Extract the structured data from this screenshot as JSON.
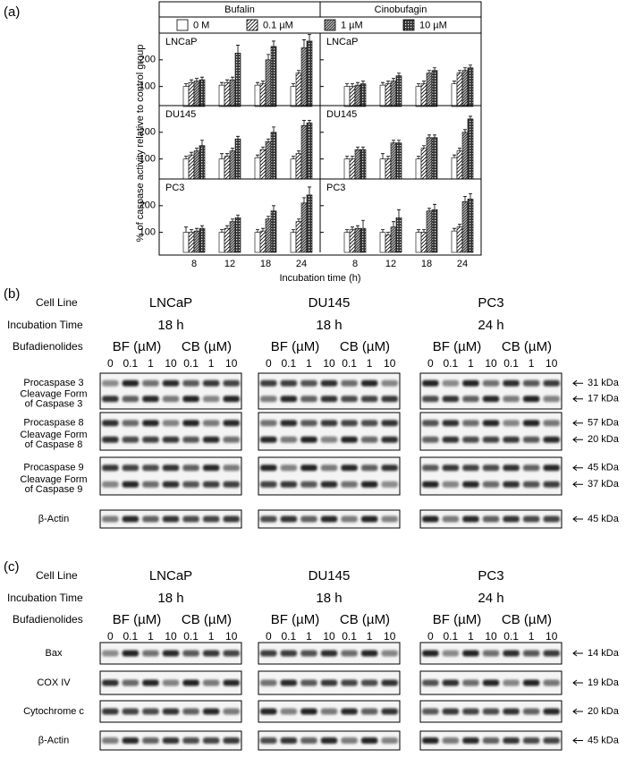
{
  "panel_a": {
    "label": "(a)",
    "column_titles": [
      "Bufalin",
      "Cinobufagin"
    ],
    "ylabel": "% of caspase activity relative to control group",
    "xlabel": "Incubation time (h)"
  },
  "chart_data": [
    {
      "type": "bar",
      "title": "LNCaP",
      "categories": [
        "8",
        "12",
        "18",
        "24"
      ],
      "ylim": [
        25,
        300
      ],
      "yticks": [
        100,
        200
      ],
      "series": [
        {
          "name": "0 M",
          "pattern": "pat-white",
          "values": [
            100,
            105,
            105,
            100
          ],
          "errors": [
            10,
            10,
            10,
            10
          ]
        },
        {
          "name": "0.1 µM",
          "pattern": "pat-sparse",
          "values": [
            115,
            115,
            110,
            150
          ],
          "errors": [
            10,
            10,
            10,
            10
          ]
        },
        {
          "name": "1 µM",
          "pattern": "pat-dense",
          "values": [
            120,
            125,
            200,
            245
          ],
          "errors": [
            10,
            10,
            20,
            30
          ]
        },
        {
          "name": "10 µM",
          "pattern": "pat-dots",
          "values": [
            125,
            225,
            250,
            270
          ],
          "errors": [
            10,
            30,
            20,
            25
          ]
        }
      ]
    },
    {
      "type": "bar",
      "title": "LNCaP",
      "categories": [
        "8",
        "12",
        "18",
        "24"
      ],
      "ylim": [
        25,
        300
      ],
      "yticks": [
        100,
        200
      ],
      "series": [
        {
          "name": "0 M",
          "pattern": "pat-white",
          "values": [
            100,
            105,
            100,
            110
          ],
          "errors": [
            10,
            10,
            10,
            10
          ]
        },
        {
          "name": "0.1 µM",
          "pattern": "pat-sparse",
          "values": [
            100,
            110,
            110,
            150
          ],
          "errors": [
            10,
            10,
            10,
            10
          ]
        },
        {
          "name": "1 µM",
          "pattern": "pat-dense",
          "values": [
            105,
            120,
            150,
            160
          ],
          "errors": [
            10,
            10,
            10,
            10
          ]
        },
        {
          "name": "10 µM",
          "pattern": "pat-dots",
          "values": [
            110,
            140,
            160,
            170
          ],
          "errors": [
            10,
            10,
            10,
            10
          ]
        }
      ]
    },
    {
      "type": "bar",
      "title": "DU145",
      "categories": [
        "8",
        "12",
        "18",
        "24"
      ],
      "ylim": [
        25,
        300
      ],
      "yticks": [
        100,
        200
      ],
      "series": [
        {
          "name": "0 M",
          "pattern": "pat-white",
          "values": [
            100,
            100,
            105,
            100
          ],
          "errors": [
            10,
            20,
            10,
            10
          ]
        },
        {
          "name": "0.1 µM",
          "pattern": "pat-sparse",
          "values": [
            115,
            110,
            135,
            120
          ],
          "errors": [
            10,
            10,
            10,
            10
          ]
        },
        {
          "name": "1 µM",
          "pattern": "pat-dense",
          "values": [
            130,
            130,
            165,
            225
          ],
          "errors": [
            10,
            10,
            10,
            20
          ]
        },
        {
          "name": "10 µM",
          "pattern": "pat-dots",
          "values": [
            150,
            175,
            200,
            235
          ],
          "errors": [
            20,
            10,
            20,
            10
          ]
        }
      ]
    },
    {
      "type": "bar",
      "title": "DU145",
      "categories": [
        "8",
        "12",
        "18",
        "24"
      ],
      "ylim": [
        25,
        300
      ],
      "yticks": [
        100,
        200
      ],
      "series": [
        {
          "name": "0 M",
          "pattern": "pat-white",
          "values": [
            100,
            100,
            100,
            105
          ],
          "errors": [
            10,
            20,
            10,
            10
          ]
        },
        {
          "name": "0.1 µM",
          "pattern": "pat-sparse",
          "values": [
            100,
            100,
            140,
            130
          ],
          "errors": [
            10,
            10,
            10,
            10
          ]
        },
        {
          "name": "1 µM",
          "pattern": "pat-dense",
          "values": [
            135,
            160,
            180,
            200
          ],
          "errors": [
            10,
            10,
            10,
            10
          ]
        },
        {
          "name": "10 µM",
          "pattern": "pat-dots",
          "values": [
            135,
            160,
            180,
            250
          ],
          "errors": [
            10,
            10,
            10,
            10
          ]
        }
      ]
    },
    {
      "type": "bar",
      "title": "PC3",
      "categories": [
        "8",
        "12",
        "18",
        "24"
      ],
      "ylim": [
        25,
        300
      ],
      "yticks": [
        100,
        200
      ],
      "series": [
        {
          "name": "0 M",
          "pattern": "pat-white",
          "values": [
            100,
            100,
            100,
            100
          ],
          "errors": [
            20,
            10,
            10,
            10
          ]
        },
        {
          "name": "0.1 µM",
          "pattern": "pat-sparse",
          "values": [
            100,
            115,
            105,
            140
          ],
          "errors": [
            10,
            10,
            10,
            10
          ]
        },
        {
          "name": "1 µM",
          "pattern": "pat-dense",
          "values": [
            105,
            140,
            150,
            210
          ],
          "errors": [
            10,
            10,
            10,
            20
          ]
        },
        {
          "name": "10 µM",
          "pattern": "pat-dots",
          "values": [
            115,
            155,
            180,
            240
          ],
          "errors": [
            10,
            10,
            20,
            30
          ]
        }
      ]
    },
    {
      "type": "bar",
      "title": "PC3",
      "categories": [
        "8",
        "12",
        "18",
        "24"
      ],
      "ylim": [
        25,
        300
      ],
      "yticks": [
        100,
        200
      ],
      "series": [
        {
          "name": "0 M",
          "pattern": "pat-white",
          "values": [
            100,
            100,
            100,
            105
          ],
          "errors": [
            10,
            10,
            10,
            10
          ]
        },
        {
          "name": "0.1 µM",
          "pattern": "pat-sparse",
          "values": [
            110,
            90,
            100,
            120
          ],
          "errors": [
            10,
            10,
            10,
            10
          ]
        },
        {
          "name": "1 µM",
          "pattern": "pat-dense",
          "values": [
            115,
            120,
            180,
            215
          ],
          "errors": [
            10,
            20,
            10,
            20
          ]
        },
        {
          "name": "10 µM",
          "pattern": "pat-dots",
          "values": [
            115,
            155,
            185,
            225
          ],
          "errors": [
            30,
            30,
            20,
            20
          ]
        }
      ]
    }
  ],
  "blot_panels": [
    {
      "label": "(b)",
      "header": {
        "cell_line_label": "Cell Line",
        "cell_lines": [
          "LNCaP",
          "DU145",
          "PC3"
        ],
        "time_label": "Incubation Time",
        "times": [
          "18 h",
          "18 h",
          "24 h"
        ],
        "treatment_label": "Bufadienolides",
        "treatment_groups": [
          "BF (µM)",
          "CB (µM)"
        ],
        "lanes": [
          "0",
          "0.1",
          "1",
          "10",
          "0.1",
          "1",
          "10"
        ]
      },
      "blots": [
        {
          "bands": [
            {
              "name": "Procaspase 3",
              "kda": "31 kDa"
            },
            {
              "name": [
                "Cleavage Form",
                "of Caspase 3"
              ],
              "kda": "17 kDa"
            }
          ]
        },
        {
          "bands": [
            {
              "name": "Procaspase 8",
              "kda": "57 kDa"
            },
            {
              "name": [
                "Cleavage Form",
                "of Caspase 8"
              ],
              "kda": "20 kDa"
            }
          ]
        },
        {
          "bands": [
            {
              "name": "Procaspase 9",
              "kda": "45 kDa"
            },
            {
              "name": [
                "Cleavage Form",
                "of Caspase 9"
              ],
              "kda": "37 kDa"
            }
          ]
        },
        {
          "bands": [
            {
              "name": "β-Actin",
              "kda": "45 kDa"
            }
          ]
        }
      ]
    },
    {
      "label": "(c)",
      "header": {
        "cell_line_label": "Cell Line",
        "cell_lines": [
          "LNCaP",
          "DU145",
          "PC3"
        ],
        "time_label": "Incubation Time",
        "times": [
          "18 h",
          "18 h",
          "24 h"
        ],
        "treatment_label": "Bufadienolides",
        "treatment_groups": [
          "BF (µM)",
          "CB (µM)"
        ],
        "lanes": [
          "0",
          "0.1",
          "1",
          "10",
          "0.1",
          "1",
          "10"
        ]
      },
      "blots": [
        {
          "bands": [
            {
              "name": "Bax",
              "kda": "14 kDa"
            }
          ]
        },
        {
          "bands": [
            {
              "name": "COX IV",
              "kda": "19 kDa"
            }
          ]
        },
        {
          "bands": [
            {
              "name": "Cytochrome c",
              "kda": "20 kDa"
            }
          ]
        },
        {
          "bands": [
            {
              "name": "β-Actin",
              "kda": "45 kDa"
            }
          ]
        }
      ]
    }
  ]
}
